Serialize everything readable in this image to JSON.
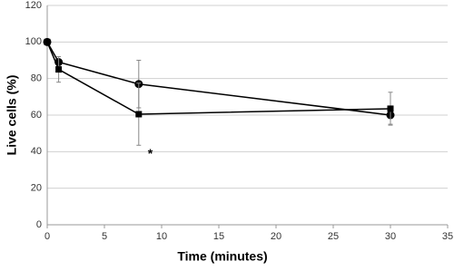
{
  "chart_data": {
    "type": "line",
    "x_label": "Time (minutes)",
    "y_label": "Live cells (%)",
    "xlim": [
      0,
      35
    ],
    "xticks": [
      0,
      5,
      10,
      15,
      20,
      25,
      30,
      35
    ],
    "ylim": [
      0,
      120
    ],
    "yticks": [
      0,
      20,
      40,
      60,
      80,
      100,
      120
    ],
    "grid": true,
    "series": [
      {
        "marker": "circle",
        "color": "#000000",
        "x": [
          0,
          1,
          8,
          30
        ],
        "values": [
          100,
          89,
          77,
          60
        ],
        "errors": [
          null,
          null,
          13,
          5
        ]
      },
      {
        "marker": "square",
        "color": "#000000",
        "x": [
          0,
          1,
          8,
          30
        ],
        "values": [
          100,
          85,
          60.5,
          63.5
        ],
        "errors": [
          null,
          7,
          17,
          9
        ]
      }
    ],
    "annotations": [
      {
        "text": "*",
        "series": 1,
        "index": 2
      }
    ]
  }
}
